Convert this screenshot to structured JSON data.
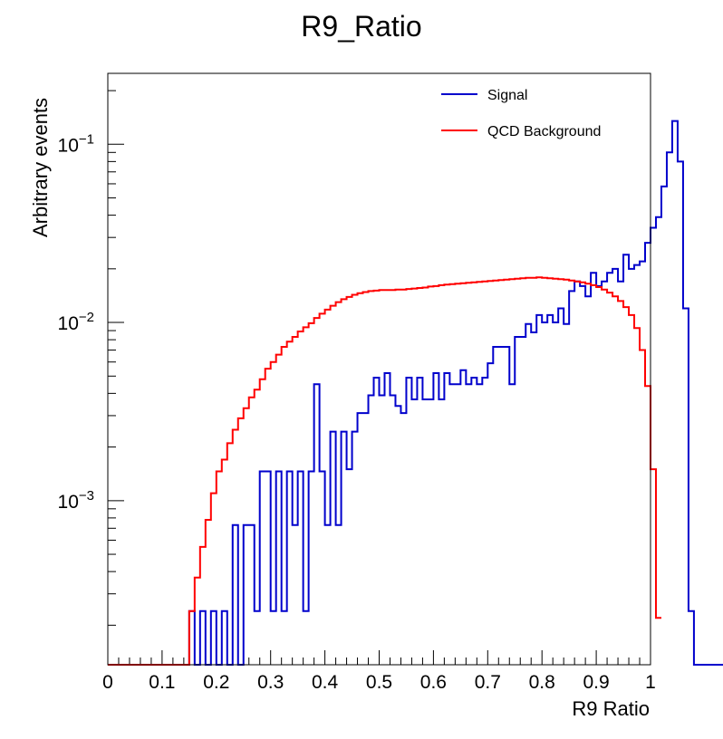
{
  "chart_data": {
    "type": "line",
    "title": "R9_Ratio",
    "xlabel": "R9 Ratio",
    "ylabel": "Arbitrary events",
    "xlim": [
      0,
      1
    ],
    "ylim": [
      0.00012,
      0.25
    ],
    "yscale": "log",
    "x_tick_labels": [
      "0",
      "0.1",
      "0.2",
      "0.3",
      "0.4",
      "0.5",
      "0.6",
      "0.7",
      "0.8",
      "0.9",
      "1"
    ],
    "y_tick_labels": [
      {
        "base": "10",
        "exp": "−3"
      },
      {
        "base": "10",
        "exp": "−2"
      },
      {
        "base": "10",
        "exp": "−1"
      }
    ],
    "legend_position": "top-right",
    "bin_edges_start": 0,
    "bin_width": 0.01,
    "series": [
      {
        "name": "Signal",
        "color": "#0000cc",
        "values": [
          0,
          0,
          0,
          0,
          0,
          0,
          0,
          0,
          0,
          0,
          0,
          0,
          0,
          0,
          0,
          0.00024,
          0,
          0.00024,
          0,
          0.00024,
          0,
          0.00024,
          0,
          0.00073,
          0,
          0.00073,
          0.00073,
          0.00024,
          0.00146,
          0.00146,
          0.00024,
          0.00146,
          0.00024,
          0.00146,
          0.00073,
          0.00146,
          0.00024,
          0.00146,
          0.0045,
          0.00146,
          0.00073,
          0.00244,
          0.00073,
          0.00244,
          0.0015,
          0.00244,
          0.0031,
          0.0031,
          0.0039,
          0.0049,
          0.0039,
          0.0052,
          0.0039,
          0.0034,
          0.0031,
          0.0049,
          0.0037,
          0.0049,
          0.0037,
          0.0037,
          0.0052,
          0.0037,
          0.0052,
          0.0045,
          0.0045,
          0.0054,
          0.0045,
          0.0049,
          0.0045,
          0.0049,
          0.0059,
          0.0073,
          0.0073,
          0.0073,
          0.0045,
          0.0083,
          0.0083,
          0.0098,
          0.0088,
          0.011,
          0.01,
          0.011,
          0.01,
          0.012,
          0.0098,
          0.015,
          0.017,
          0.016,
          0.014,
          0.019,
          0.016,
          0.017,
          0.019,
          0.02,
          0.017,
          0.024,
          0.02,
          0.021,
          0.022,
          0.028,
          0.034,
          0.039,
          0.058,
          0.09,
          0.135,
          0.08,
          0.012,
          0.00024,
          0,
          0,
          0,
          0,
          0,
          0,
          0,
          0,
          0,
          0,
          0,
          0,
          0,
          0,
          0,
          0,
          0,
          0,
          0,
          0,
          0,
          0,
          0,
          0,
          0,
          0,
          0,
          0,
          0,
          0,
          0,
          0,
          0,
          0,
          0,
          0,
          0,
          0,
          0,
          0,
          0,
          0,
          0,
          0,
          0,
          0,
          0,
          0,
          0,
          0,
          0,
          0,
          0,
          0,
          0,
          0,
          0,
          0,
          0,
          0,
          0,
          0,
          0
        ]
      },
      {
        "name": "QCD Background",
        "color": "#ff0000",
        "values": [
          0,
          0,
          0,
          0,
          0,
          0,
          0,
          0,
          0,
          0,
          0,
          0,
          0,
          0,
          0,
          0.00024,
          0.00037,
          0.00055,
          0.00078,
          0.0011,
          0.00146,
          0.0017,
          0.0021,
          0.0025,
          0.0029,
          0.0033,
          0.0038,
          0.0042,
          0.0048,
          0.0055,
          0.006,
          0.0066,
          0.0073,
          0.0078,
          0.0083,
          0.0089,
          0.0094,
          0.0099,
          0.0106,
          0.0112,
          0.0118,
          0.0124,
          0.013,
          0.0135,
          0.0139,
          0.0143,
          0.0146,
          0.0148,
          0.015,
          0.0151,
          0.0152,
          0.0152,
          0.0152,
          0.0153,
          0.0153,
          0.0154,
          0.0155,
          0.0156,
          0.0157,
          0.0159,
          0.016,
          0.0162,
          0.0163,
          0.0164,
          0.0165,
          0.0166,
          0.0167,
          0.0168,
          0.0169,
          0.017,
          0.0171,
          0.0172,
          0.0173,
          0.0174,
          0.0175,
          0.0176,
          0.0177,
          0.0178,
          0.0178,
          0.0179,
          0.0178,
          0.0177,
          0.0176,
          0.0175,
          0.0174,
          0.0172,
          0.017,
          0.0168,
          0.0165,
          0.0162,
          0.0158,
          0.0153,
          0.0147,
          0.014,
          0.0132,
          0.0122,
          0.011,
          0.0093,
          0.007,
          0.0044,
          0.0015,
          0.00022
        ]
      }
    ]
  }
}
